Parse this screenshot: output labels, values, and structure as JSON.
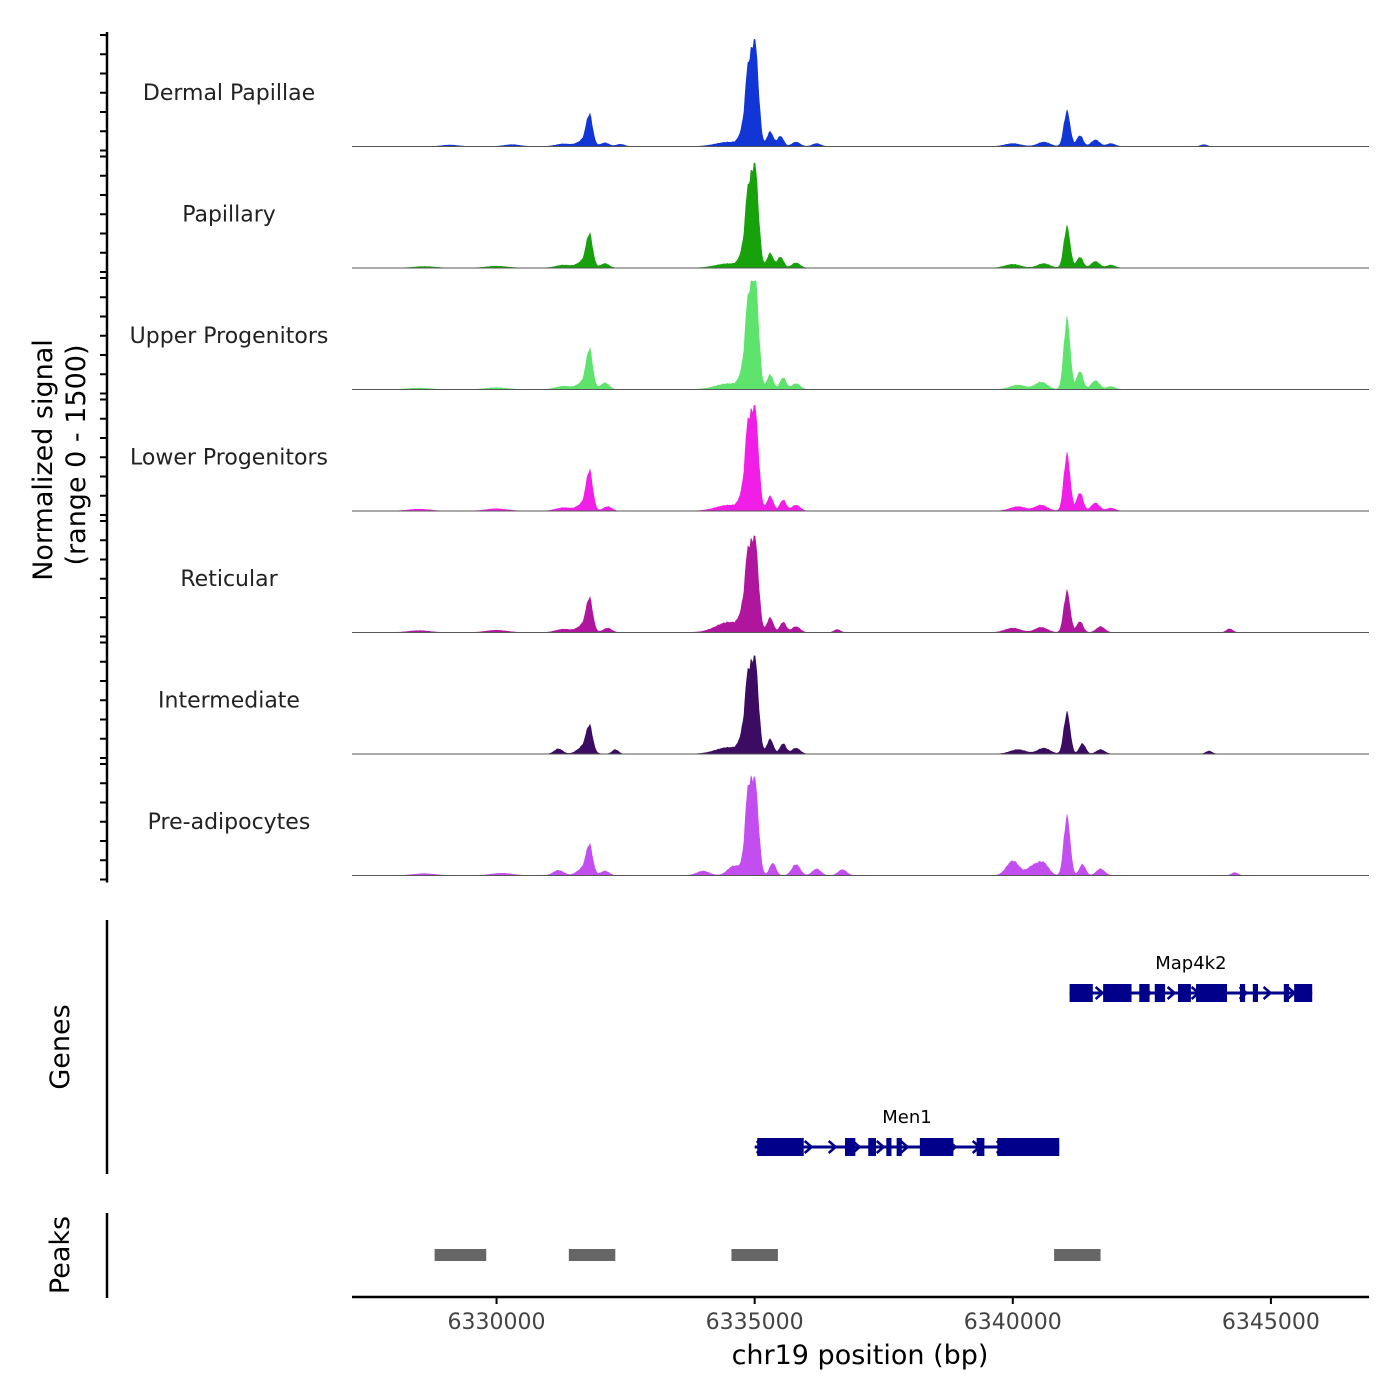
{
  "chart_data": {
    "type": "area",
    "title": "",
    "ylabel_line1": "Normalized signal",
    "ylabel_line2": "(range 0 - 1500)",
    "ylim": [
      0,
      1500
    ],
    "xlabel": "chr19 position (bp)",
    "xlim": [
      6327200,
      6346900
    ],
    "xticks": [
      6330000,
      6335000,
      6340000,
      6345000
    ],
    "xtick_labels": [
      "6330000",
      "6335000",
      "6340000",
      "6345000"
    ],
    "tracks": [
      {
        "name": "Dermal Papillae",
        "color": "#1236d6",
        "peaks": [
          [
            6329100,
            20,
            150
          ],
          [
            6330300,
            25,
            150
          ],
          [
            6331300,
            35,
            150
          ],
          [
            6331800,
            380,
            60
          ],
          [
            6331700,
            90,
            120
          ],
          [
            6332100,
            50,
            80
          ],
          [
            6332400,
            30,
            80
          ],
          [
            6334500,
            60,
            250
          ],
          [
            6334800,
            250,
            80
          ],
          [
            6335000,
            1430,
            70
          ],
          [
            6334870,
            700,
            50
          ],
          [
            6335300,
            200,
            60
          ],
          [
            6335500,
            140,
            60
          ],
          [
            6335800,
            60,
            80
          ],
          [
            6336200,
            40,
            80
          ],
          [
            6340000,
            40,
            150
          ],
          [
            6340600,
            60,
            120
          ],
          [
            6341050,
            480,
            60
          ],
          [
            6341300,
            150,
            60
          ],
          [
            6341600,
            90,
            80
          ],
          [
            6341900,
            40,
            80
          ],
          [
            6343700,
            25,
            60
          ]
        ]
      },
      {
        "name": "Papillary",
        "color": "#17a10a",
        "peaks": [
          [
            6328600,
            20,
            200
          ],
          [
            6330000,
            25,
            200
          ],
          [
            6331300,
            40,
            150
          ],
          [
            6331800,
            400,
            60
          ],
          [
            6331700,
            100,
            120
          ],
          [
            6332100,
            60,
            80
          ],
          [
            6334500,
            60,
            250
          ],
          [
            6334800,
            250,
            80
          ],
          [
            6335000,
            1400,
            70
          ],
          [
            6334870,
            700,
            50
          ],
          [
            6335300,
            200,
            60
          ],
          [
            6335500,
            150,
            60
          ],
          [
            6335800,
            70,
            80
          ],
          [
            6340000,
            50,
            150
          ],
          [
            6340600,
            60,
            120
          ],
          [
            6341050,
            560,
            60
          ],
          [
            6341300,
            150,
            60
          ],
          [
            6341600,
            90,
            80
          ],
          [
            6341900,
            40,
            80
          ]
        ]
      },
      {
        "name": "Upper Progenitors",
        "color": "#5ee36c",
        "peaks": [
          [
            6328500,
            20,
            200
          ],
          [
            6330000,
            25,
            200
          ],
          [
            6331300,
            45,
            150
          ],
          [
            6331800,
            480,
            60
          ],
          [
            6331700,
            110,
            120
          ],
          [
            6332100,
            90,
            80
          ],
          [
            6334500,
            80,
            250
          ],
          [
            6334800,
            280,
            80
          ],
          [
            6335000,
            1580,
            70
          ],
          [
            6334870,
            800,
            50
          ],
          [
            6335300,
            200,
            60
          ],
          [
            6335550,
            160,
            60
          ],
          [
            6335800,
            80,
            80
          ],
          [
            6340100,
            60,
            150
          ],
          [
            6340550,
            100,
            120
          ],
          [
            6341050,
            960,
            60
          ],
          [
            6341300,
            250,
            60
          ],
          [
            6341600,
            120,
            80
          ],
          [
            6341900,
            40,
            80
          ]
        ]
      },
      {
        "name": "Lower Progenitors",
        "color": "#f11ee8",
        "peaks": [
          [
            6328500,
            25,
            200
          ],
          [
            6330000,
            30,
            200
          ],
          [
            6331300,
            45,
            150
          ],
          [
            6331800,
            480,
            60
          ],
          [
            6331700,
            110,
            120
          ],
          [
            6332150,
            60,
            80
          ],
          [
            6334500,
            80,
            250
          ],
          [
            6334800,
            280,
            80
          ],
          [
            6335000,
            1400,
            70
          ],
          [
            6334870,
            800,
            50
          ],
          [
            6335300,
            200,
            60
          ],
          [
            6335550,
            150,
            60
          ],
          [
            6335800,
            80,
            80
          ],
          [
            6340100,
            60,
            150
          ],
          [
            6340550,
            80,
            120
          ],
          [
            6341050,
            770,
            60
          ],
          [
            6341300,
            250,
            60
          ],
          [
            6341600,
            110,
            80
          ],
          [
            6341900,
            40,
            80
          ]
        ]
      },
      {
        "name": "Reticular",
        "color": "#b0159e",
        "peaks": [
          [
            6328500,
            25,
            200
          ],
          [
            6330000,
            30,
            200
          ],
          [
            6331300,
            45,
            150
          ],
          [
            6331800,
            400,
            60
          ],
          [
            6331700,
            110,
            120
          ],
          [
            6332150,
            60,
            80
          ],
          [
            6334500,
            140,
            250
          ],
          [
            6334800,
            300,
            80
          ],
          [
            6335000,
            1270,
            70
          ],
          [
            6334870,
            700,
            50
          ],
          [
            6335300,
            200,
            60
          ],
          [
            6335550,
            140,
            60
          ],
          [
            6335800,
            80,
            80
          ],
          [
            6336600,
            40,
            60
          ],
          [
            6340000,
            60,
            150
          ],
          [
            6340550,
            70,
            120
          ],
          [
            6341050,
            560,
            60
          ],
          [
            6341300,
            150,
            60
          ],
          [
            6341700,
            80,
            80
          ],
          [
            6344200,
            50,
            60
          ]
        ]
      },
      {
        "name": "Intermediate",
        "color": "#3b0c62",
        "peaks": [
          [
            6331200,
            70,
            80
          ],
          [
            6331800,
            320,
            60
          ],
          [
            6331700,
            110,
            120
          ],
          [
            6332300,
            60,
            60
          ],
          [
            6334500,
            90,
            250
          ],
          [
            6334800,
            300,
            80
          ],
          [
            6335000,
            1300,
            70
          ],
          [
            6334870,
            700,
            50
          ],
          [
            6335300,
            200,
            60
          ],
          [
            6335550,
            140,
            60
          ],
          [
            6335800,
            80,
            80
          ],
          [
            6340100,
            60,
            150
          ],
          [
            6340600,
            80,
            120
          ],
          [
            6341050,
            560,
            60
          ],
          [
            6341350,
            140,
            60
          ],
          [
            6341700,
            60,
            80
          ],
          [
            6343800,
            40,
            60
          ]
        ]
      },
      {
        "name": "Pre-adipocytes",
        "color": "#c34ef0",
        "peaks": [
          [
            6328600,
            25,
            200
          ],
          [
            6330100,
            30,
            200
          ],
          [
            6331200,
            70,
            100
          ],
          [
            6331800,
            350,
            60
          ],
          [
            6331700,
            110,
            120
          ],
          [
            6332100,
            60,
            80
          ],
          [
            6334000,
            60,
            120
          ],
          [
            6334600,
            130,
            120
          ],
          [
            6334850,
            300,
            80
          ],
          [
            6335000,
            1270,
            70
          ],
          [
            6334870,
            700,
            50
          ],
          [
            6335350,
            170,
            60
          ],
          [
            6335800,
            150,
            80
          ],
          [
            6336200,
            90,
            80
          ],
          [
            6336700,
            80,
            80
          ],
          [
            6340000,
            200,
            120
          ],
          [
            6340400,
            130,
            120
          ],
          [
            6340600,
            150,
            100
          ],
          [
            6341050,
            800,
            60
          ],
          [
            6341350,
            150,
            60
          ],
          [
            6341700,
            90,
            80
          ],
          [
            6344300,
            40,
            60
          ]
        ]
      }
    ],
    "genes_label": "Genes",
    "genes": [
      {
        "name": "Map4k2",
        "start": 6341100,
        "end": 6345800,
        "strand": "+",
        "exons": [
          [
            6341100,
            6341550
          ],
          [
            6341750,
            6342300
          ],
          [
            6342450,
            6342650
          ],
          [
            6342750,
            6342950
          ],
          [
            6343200,
            6343450
          ],
          [
            6343550,
            6344150
          ],
          [
            6344400,
            6344500
          ],
          [
            6344650,
            6344750
          ],
          [
            6345250,
            6345350
          ],
          [
            6345450,
            6345800
          ]
        ]
      },
      {
        "name": "Men1",
        "start": 6335000,
        "end": 6340900,
        "strand": "+",
        "exons": [
          [
            6335050,
            6335950
          ],
          [
            6336750,
            6336950
          ],
          [
            6337200,
            6337350
          ],
          [
            6337550,
            6337650
          ],
          [
            6337750,
            6337850
          ],
          [
            6338200,
            6338850
          ],
          [
            6339300,
            6339450
          ],
          [
            6339700,
            6340900
          ]
        ]
      }
    ],
    "peaks_label": "Peaks",
    "peaks": [
      [
        6328800,
        6329800
      ],
      [
        6331400,
        6332300
      ],
      [
        6334550,
        6335450
      ],
      [
        6340800,
        6341700
      ]
    ]
  }
}
